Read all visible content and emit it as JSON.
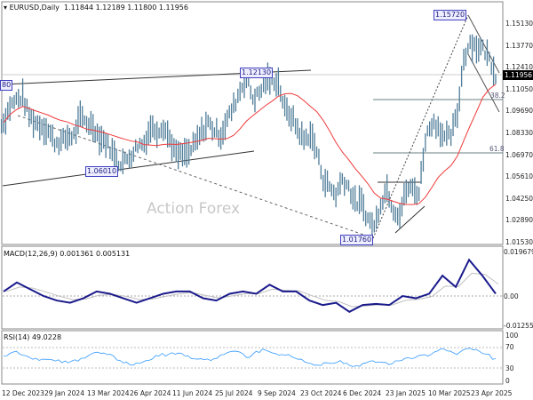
{
  "header": {
    "symbol": "EURUSD,Daily",
    "ohlc": "1.11844 1.12189 1.11800 1.11956"
  },
  "watermark": "Action Forex",
  "annotations": {
    "high_1": "1.12130",
    "high_left": "80",
    "low_1": "1.06010",
    "low_2": "1.01760",
    "high_2": "1.15720",
    "fib_382": "38.2",
    "fib_618": "61.8",
    "current_price": "1.11956"
  },
  "colors": {
    "bars": "#4f7d99",
    "ma": "#f03a3a",
    "macd": "#1a1a8c",
    "signal": "#c0c0c0",
    "rsi": "#3399ff"
  },
  "chart_data": [
    {
      "type": "bar",
      "title": "EURUSD,Daily",
      "ylim": [
        1.0153,
        1.1513
      ],
      "y_ticks": [
        "1.15130",
        "1.13770",
        "1.12410",
        "1.11050",
        "1.09690",
        "1.08330",
        "1.06970",
        "1.05610",
        "1.04250",
        "1.02890",
        "1.01530"
      ],
      "x_ticks": [
        "12 Dec 2023",
        "29 Jan 2024",
        "13 Mar 2024",
        "26 Apr 2024",
        "11 Jun 2024",
        "25 Jul 2024",
        "9 Sep 2024",
        "23 Oct 2024",
        "6 Dec 2024",
        "23 Jan 2025",
        "10 Mar 2025",
        "23 Apr 2025"
      ],
      "weekly_close": [
        1.09,
        1.1,
        1.104,
        1.106,
        1.094,
        1.09,
        1.088,
        1.085,
        1.078,
        1.078,
        1.081,
        1.082,
        1.093,
        1.09,
        1.088,
        1.081,
        1.078,
        1.072,
        1.065,
        1.066,
        1.07,
        1.076,
        1.077,
        1.087,
        1.085,
        1.088,
        1.08,
        1.07,
        1.07,
        1.071,
        1.077,
        1.084,
        1.09,
        1.085,
        1.082,
        1.092,
        1.1,
        1.11,
        1.118,
        1.105,
        1.108,
        1.116,
        1.117,
        1.115,
        1.098,
        1.094,
        1.086,
        1.079,
        1.083,
        1.072,
        1.055,
        1.05,
        1.045,
        1.055,
        1.05,
        1.04,
        1.04,
        1.03,
        1.025,
        1.04,
        1.049,
        1.036,
        1.033,
        1.048,
        1.049,
        1.046,
        1.08,
        1.09,
        1.088,
        1.08,
        1.082,
        1.095,
        1.13,
        1.14,
        1.137,
        1.136,
        1.13,
        1.12
      ]
    },
    {
      "type": "line",
      "title": "MACD(12,26,9) 0.001361 0.005131",
      "ylim": [
        -0.012552,
        0.019679
      ],
      "y_ticks": [
        "0.019679",
        "0.00",
        "-0.012552"
      ],
      "macd": [
        0.002,
        0.006,
        0.003,
        0,
        -0.002,
        -0.003,
        -0.001,
        0.002,
        0.001,
        -0.001,
        -0.003,
        -0.001,
        0.001,
        0.002,
        0.002,
        -0.001,
        -0.002,
        0.001,
        0.002,
        0.001,
        0.005,
        0.002,
        0.002,
        -0.002,
        -0.004,
        -0.003,
        -0.007,
        -0.004,
        -0.0035,
        -0.004,
        0,
        -0.001,
        0.001,
        0.009,
        0.004,
        0.016,
        0.009,
        0.001
      ]
    },
    {
      "type": "line",
      "title": "RSI(14) 49.0228",
      "ylim": [
        0,
        100
      ],
      "y_ticks": [
        "100",
        "70",
        "30",
        "0"
      ],
      "rsi": [
        55,
        65,
        52,
        48,
        44,
        40,
        50,
        62,
        58,
        45,
        35,
        45,
        55,
        62,
        55,
        48,
        45,
        58,
        65,
        52,
        70,
        60,
        58,
        48,
        35,
        40,
        45,
        32,
        40,
        42,
        38,
        50,
        55,
        58,
        70,
        58,
        72,
        60,
        49
      ]
    }
  ]
}
